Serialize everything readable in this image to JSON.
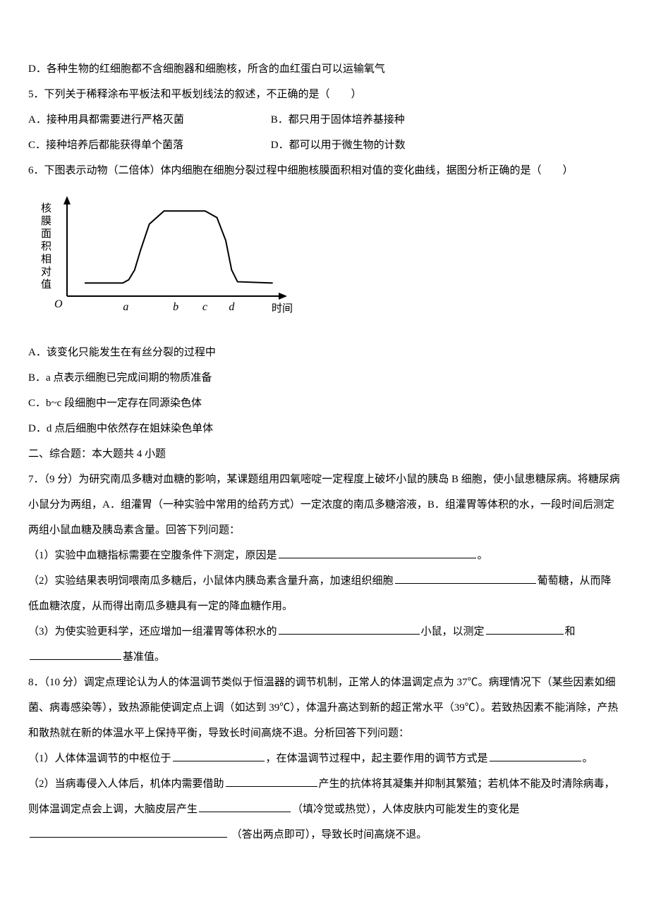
{
  "q4_d": "D．各种生物的红细胞都不含细胞器和细胞核，所含的血红蛋白可以运输氧气",
  "q5": {
    "stem": "5．下列关于稀释涂布平板法和平板划线法的叙述，不正确的是（　　）",
    "a": "A．接种用具都需要进行严格灭菌",
    "b": "B．都只用于固体培养基接种",
    "c": "C．接种培养后都能获得单个菌落",
    "d": "D．都可以用于微生物的计数"
  },
  "q6": {
    "stem": "6．下图表示动物（二倍体）体内细胞在细胞分裂过程中细胞核膜面积相对值的变化曲线，据图分析正确的是（　　）",
    "a": "A．该变化只能发生在有丝分裂的过程中",
    "b": "B．a 点表示细胞已完成间期的物质准备",
    "c": "C．b~c 段细胞中一定存在同源染色体",
    "d": "D．d 点后细胞中依然存在姐妹染色单体",
    "chart": {
      "ylabel": "核膜面积相对值",
      "xlabel": "时间",
      "origin": "O",
      "ticks": [
        "a",
        "b",
        "c",
        "d"
      ],
      "curve_points": [
        [
          30,
          20
        ],
        [
          95,
          20
        ],
        [
          105,
          25
        ],
        [
          115,
          40
        ],
        [
          125,
          70
        ],
        [
          140,
          110
        ],
        [
          165,
          130
        ],
        [
          200,
          130
        ],
        [
          235,
          130
        ],
        [
          255,
          120
        ],
        [
          270,
          85
        ],
        [
          280,
          40
        ],
        [
          290,
          22
        ],
        [
          350,
          20
        ]
      ],
      "curve_color": "#000000",
      "axis_color": "#000000",
      "bg": "#ffffff",
      "line_width": 2
    }
  },
  "section2": "二、综合题：本大题共 4 小题",
  "q7": {
    "p1": "7．（9 分）为研究南瓜多糖对血糖的影响，某课题组用四氧嘧啶一定程度上破坏小鼠的胰岛 B 细胞，使小鼠患糖尿病。将糖尿病小鼠分为两组，A．组灌胃（一种实验中常用的给药方式）一定浓度的南瓜多糖溶液，B．组灌胃等体积的水，一段时间后测定两组小鼠血糖及胰岛素含量。回答下列问题：",
    "s1_a": "（1）实验中血糖指标需要在空腹条件下测定，原因是",
    "s1_b": "。",
    "s2_a": "（2）实验结果表明饲喂南瓜多糖后，小鼠体内胰岛素含量升高，加速组织细胞",
    "s2_b": "葡萄糖，从而降低血糖浓度，从而得出南瓜多糖具有一定的降血糖作用。",
    "s3_a": "（3）为使实验更科学，还应增加一组灌胃等体积水的",
    "s3_b": "小鼠，以测定",
    "s3_c": "和",
    "s3_d": "基准值。"
  },
  "q8": {
    "p1": "8．（10 分）调定点理论认为人的体温调节类似于恒温器的调节机制，正常人的体温调定点为 37℃。病理情况下（某些因素如细菌、病毒感染等），致热源能使调定点上调（如达到 39℃），体温升高达到新的超正常水平（39℃）。若致热因素不能消除，产热和散热就在新的体温水平上保持平衡，导致长时间高烧不退。分析回答下列问题：",
    "s1_a": "（1）人体体温调节的中枢位于",
    "s1_b": "，在体温调节过程中，起主要作用的调节方式是",
    "s1_c": "。",
    "s2_a": "（2）当病毒侵入人体后，机体内需要借助",
    "s2_b": "产生的抗体将其凝集并抑制其繁殖；若机体不能及时清除病毒，则体温调定点会上调，大脑皮层产生",
    "s2_c": "（填冷觉或热觉），人体皮肤内可能发生的变化是",
    "s2_d": "（答出两点即可），导致长时间高烧不退。"
  },
  "blanks": {
    "w_long": 280,
    "w_mid": 200,
    "w_short": 130,
    "w_xshort": 110
  }
}
